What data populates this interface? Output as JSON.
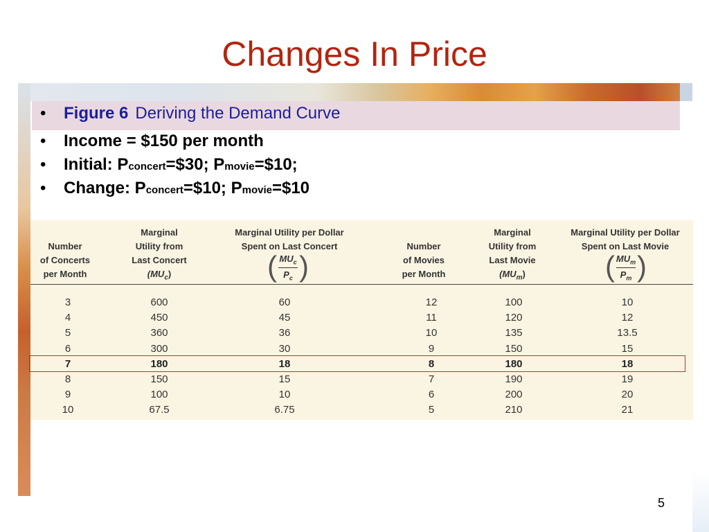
{
  "title": "Changes In Price",
  "figure": {
    "label": "Figure 6",
    "caption": "Deriving the Demand Curve"
  },
  "bullets": {
    "income": "Income = $150 per month",
    "initial": {
      "prefix": "Initial: P",
      "sub1": "concert",
      "mid": "=$30; P",
      "sub2": "movie",
      "suffix": "=$10;"
    },
    "change": {
      "prefix": "Change: P",
      "sub1": "concert",
      "mid": "=$10; P",
      "sub2": "movie",
      "suffix": "=$10"
    }
  },
  "table": {
    "headers": {
      "concerts": [
        "Number",
        "of Concerts",
        "per Month"
      ],
      "mu_concert": [
        "Marginal",
        "Utility from",
        "Last Concert",
        "(MU",
        "c",
        ")"
      ],
      "mu_per_dollar_concert": [
        "Marginal Utility per Dollar",
        "Spent on Last Concert"
      ],
      "frac_concert": {
        "num": "MU",
        "num_sub": "c",
        "den": "P",
        "den_sub": "c"
      },
      "movies": [
        "Number",
        "of Movies",
        "per Month"
      ],
      "mu_movie": [
        "Marginal",
        "Utility from",
        "Last Movie",
        "(MU",
        "m",
        ")"
      ],
      "mu_per_dollar_movie": [
        "Marginal Utility per Dollar",
        "Spent on Last Movie"
      ],
      "frac_movie": {
        "num": "MU",
        "num_sub": "m",
        "den": "P",
        "den_sub": "m"
      }
    },
    "rows": [
      [
        "3",
        "600",
        "60",
        "12",
        "100",
        "10"
      ],
      [
        "4",
        "450",
        "45",
        "11",
        "120",
        "12"
      ],
      [
        "5",
        "360",
        "36",
        "10",
        "135",
        "13.5"
      ],
      [
        "6",
        "300",
        "30",
        "9",
        "150",
        "15"
      ],
      [
        "7",
        "180",
        "18",
        "8",
        "180",
        "18"
      ],
      [
        "8",
        "150",
        "15",
        "7",
        "190",
        "19"
      ],
      [
        "9",
        "100",
        "10",
        "6",
        "200",
        "20"
      ],
      [
        "10",
        "67.5",
        "6.75",
        "5",
        "210",
        "21"
      ]
    ],
    "highlighted_row_index": 4
  },
  "page_number": "5",
  "colors": {
    "title": "#b22510",
    "figure_text": "#1b1f9a",
    "banner": "#ead8e0",
    "panel": "#faf4e2",
    "highlight_border": "#c0302a"
  }
}
